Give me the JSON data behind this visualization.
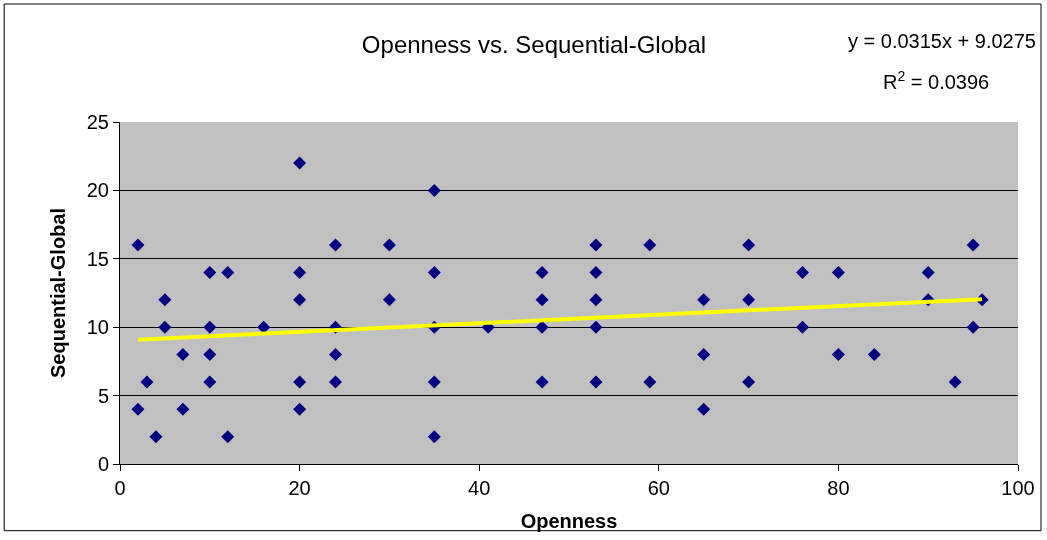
{
  "chart_data": {
    "type": "scatter",
    "title": "Openness vs. Sequential-Global",
    "xlabel": "Openness",
    "ylabel": "Sequential-Global",
    "annotations": [
      "y = 0.0315x + 9.0275",
      "R$^{2}$ = 0.0396"
    ],
    "series": [
      {
        "color": "#000080",
        "marker": "diamond",
        "x": [
          2,
          2,
          3,
          4,
          5,
          5,
          7,
          7,
          10,
          10,
          10,
          10,
          12,
          12,
          16,
          20,
          20,
          20,
          20,
          20,
          24,
          24,
          24,
          24,
          30,
          30,
          35,
          35,
          35,
          35,
          35,
          41,
          47,
          47,
          47,
          47,
          53,
          53,
          53,
          53,
          53,
          59,
          59,
          65,
          65,
          65,
          70,
          70,
          70,
          76,
          76,
          80,
          80,
          84,
          90,
          90,
          93,
          95,
          95,
          96
        ],
        "values": [
          16,
          4,
          6,
          2,
          12,
          10,
          8,
          4,
          14,
          10,
          8,
          6,
          14,
          2,
          10,
          22,
          14,
          12,
          6,
          4,
          16,
          10,
          8,
          6,
          16,
          12,
          20,
          14,
          10,
          6,
          2,
          10,
          14,
          12,
          10,
          6,
          16,
          14,
          12,
          10,
          6,
          16,
          6,
          12,
          8,
          4,
          16,
          12,
          6,
          14,
          10,
          14,
          8,
          8,
          14,
          12,
          6,
          16,
          10,
          12
        ]
      },
      {
        "type": "line",
        "color": "#ffff00",
        "marker": "none",
        "line_style": "solid",
        "x": [
          2,
          96
        ],
        "values": [
          9.09,
          12.05
        ]
      }
    ],
    "xlim": [
      0,
      100
    ],
    "xticks": [
      0,
      20,
      40,
      60,
      80,
      100
    ],
    "ylim": [
      0,
      25
    ],
    "yticks": [
      0,
      5,
      10,
      15,
      20,
      25
    ],
    "grid": "y",
    "legend": false
  }
}
